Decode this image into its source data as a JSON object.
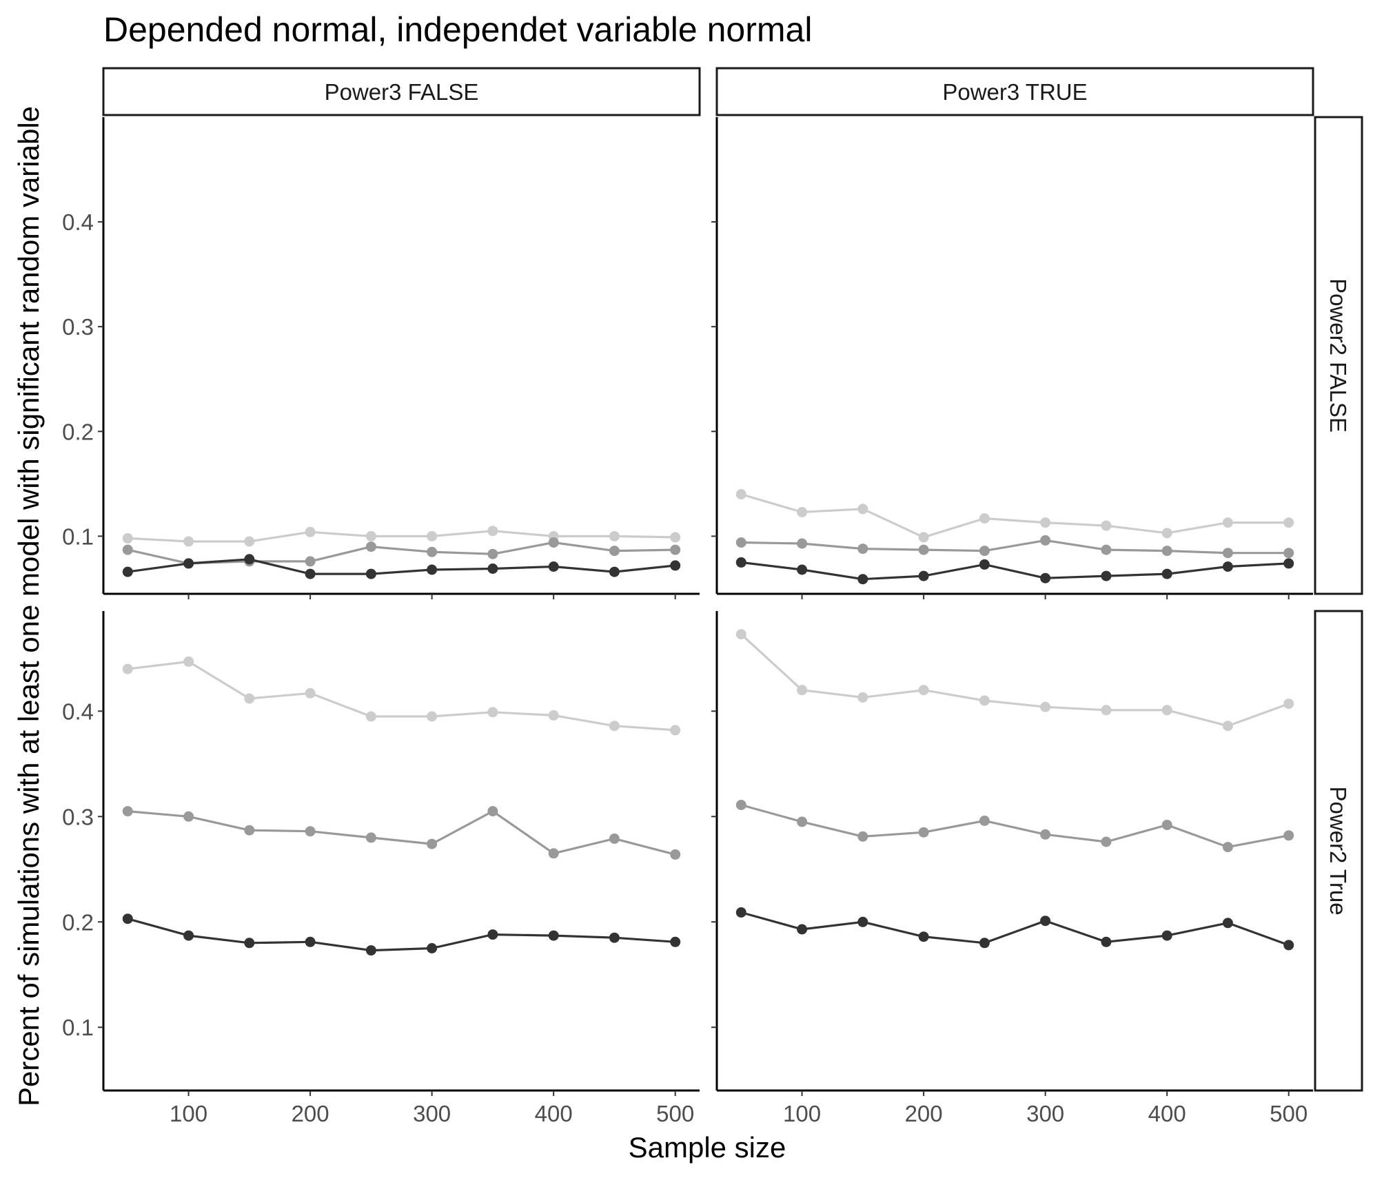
{
  "chart_data": {
    "type": "line",
    "title": "Depended normal, independet variable normal",
    "xlabel": "Sample size",
    "ylabel": "Percent of simulations with at least one model with significant random variable",
    "grid": false,
    "facets": {
      "columns": [
        "Power3 FALSE",
        "Power3 TRUE"
      ],
      "rows": [
        "Power2 FALSE",
        "Power2 True"
      ]
    },
    "x": [
      50,
      100,
      150,
      200,
      250,
      300,
      350,
      400,
      450,
      500
    ],
    "xticks": [
      100,
      200,
      300,
      400,
      500
    ],
    "xlim": [
      30,
      520
    ],
    "series_colors": [
      "#cccccc",
      "#999999",
      "#333333"
    ],
    "panels": [
      {
        "column": "Power3 FALSE",
        "row": "Power2 FALSE",
        "ylim": [
          0.045,
          0.5
        ],
        "yticks": [
          "0.1",
          "0.2",
          "0.3",
          "0.4"
        ],
        "series": [
          {
            "values": [
              0.098,
              0.095,
              0.095,
              0.104,
              0.1,
              0.1,
              0.105,
              0.1,
              0.1,
              0.099
            ]
          },
          {
            "values": [
              0.087,
              0.074,
              0.076,
              0.076,
              0.09,
              0.085,
              0.083,
              0.094,
              0.086,
              0.087
            ]
          },
          {
            "values": [
              0.066,
              0.074,
              0.078,
              0.064,
              0.064,
              0.068,
              0.069,
              0.071,
              0.066,
              0.072
            ]
          }
        ]
      },
      {
        "column": "Power3 TRUE",
        "row": "Power2 FALSE",
        "ylim": [
          0.045,
          0.5
        ],
        "yticks": [
          "0.1",
          "0.2",
          "0.3",
          "0.4"
        ],
        "series": [
          {
            "values": [
              0.14,
              0.123,
              0.126,
              0.099,
              0.117,
              0.113,
              0.11,
              0.103,
              0.113,
              0.113
            ]
          },
          {
            "values": [
              0.094,
              0.093,
              0.088,
              0.087,
              0.086,
              0.096,
              0.087,
              0.086,
              0.084,
              0.084
            ]
          },
          {
            "values": [
              0.075,
              0.068,
              0.059,
              0.062,
              0.073,
              0.06,
              0.062,
              0.064,
              0.071,
              0.074
            ]
          }
        ]
      },
      {
        "column": "Power3 FALSE",
        "row": "Power2 True",
        "ylim": [
          0.04,
          0.495
        ],
        "yticks": [
          "0.1",
          "0.2",
          "0.3",
          "0.4"
        ],
        "series": [
          {
            "values": [
              0.44,
              0.447,
              0.412,
              0.417,
              0.395,
              0.395,
              0.399,
              0.396,
              0.386,
              0.382
            ]
          },
          {
            "values": [
              0.305,
              0.3,
              0.287,
              0.286,
              0.28,
              0.274,
              0.305,
              0.265,
              0.279,
              0.264
            ]
          },
          {
            "values": [
              0.203,
              0.187,
              0.18,
              0.181,
              0.173,
              0.175,
              0.188,
              0.187,
              0.185,
              0.181
            ]
          }
        ]
      },
      {
        "column": "Power3 TRUE",
        "row": "Power2 True",
        "ylim": [
          0.04,
          0.495
        ],
        "yticks": [
          "0.1",
          "0.2",
          "0.3",
          "0.4"
        ],
        "series": [
          {
            "values": [
              0.473,
              0.42,
              0.413,
              0.42,
              0.41,
              0.404,
              0.401,
              0.401,
              0.386,
              0.407
            ]
          },
          {
            "values": [
              0.311,
              0.295,
              0.281,
              0.285,
              0.296,
              0.283,
              0.276,
              0.292,
              0.271,
              0.282
            ]
          },
          {
            "values": [
              0.209,
              0.193,
              0.2,
              0.186,
              0.18,
              0.201,
              0.181,
              0.187,
              0.199,
              0.178
            ]
          }
        ]
      }
    ]
  }
}
